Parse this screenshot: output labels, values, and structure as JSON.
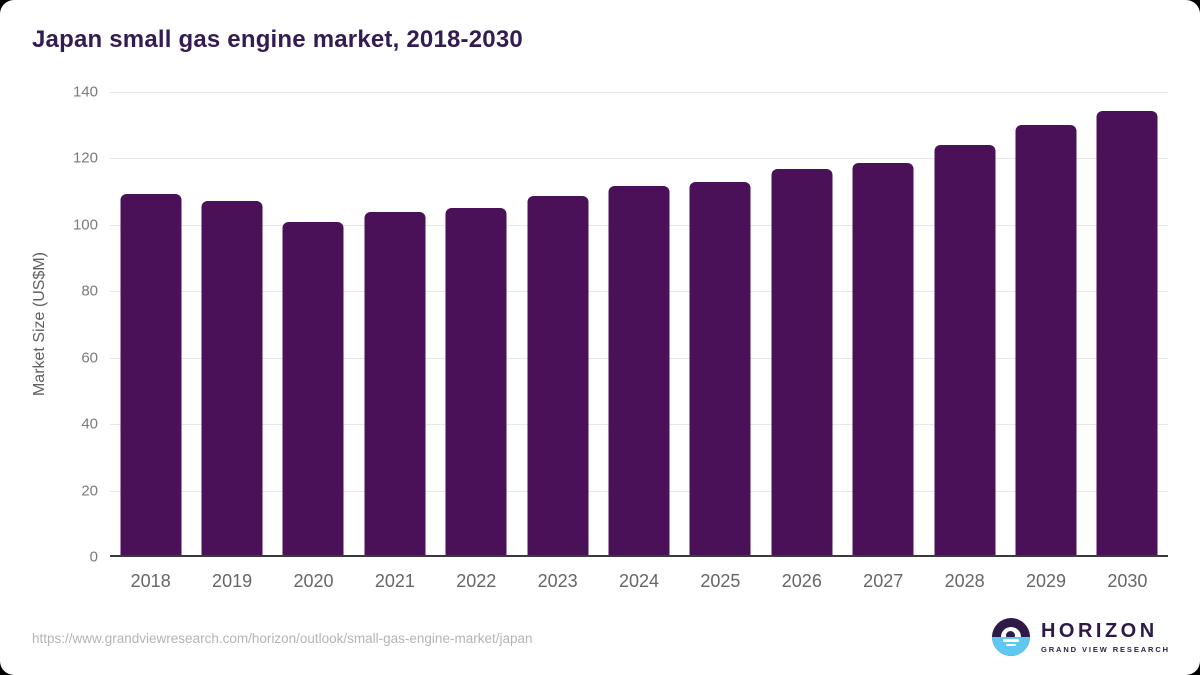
{
  "page": {
    "title": "Japan small gas engine market, 2018-2030"
  },
  "chart_data": {
    "type": "bar",
    "title": "Japan small gas engine market, 2018-2030",
    "categories": [
      "2018",
      "2019",
      "2020",
      "2021",
      "2022",
      "2023",
      "2024",
      "2025",
      "2026",
      "2027",
      "2028",
      "2029",
      "2030"
    ],
    "values": [
      108.6,
      106.7,
      100.2,
      103.4,
      104.4,
      108.0,
      111.0,
      112.2,
      116.2,
      118.0,
      123.4,
      129.6,
      133.7
    ],
    "xlabel": "",
    "ylabel": "Market Size (US$M)",
    "ylim": [
      0,
      140
    ],
    "ytick_step": 20,
    "yticks": [
      0,
      20,
      40,
      60,
      80,
      100,
      120,
      140
    ],
    "grid": true,
    "legend": false,
    "bar_color": "#4a1158"
  },
  "footer": {
    "source_url": "https://www.grandviewresearch.com/horizon/outlook/small-gas-engine-market/japan",
    "logo": {
      "icon": "horizon-sunrise-icon",
      "name": "HORIZON",
      "subtitle": "GRAND VIEW RESEARCH"
    }
  },
  "colors": {
    "bar": "#4a1158",
    "title_text": "#331c52",
    "xtick_text": "#666666",
    "ytick_text": "#7a7a7a",
    "grid": "#e7e7e7",
    "baseline": "#3a3a3a",
    "url_text": "#b4b4b4",
    "logo_purple": "#2e1a47",
    "logo_blue": "#5ec8f2"
  }
}
